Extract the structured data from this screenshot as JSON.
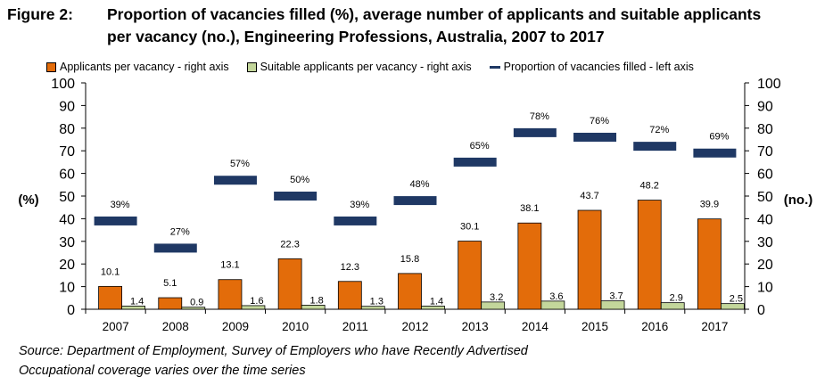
{
  "figure": {
    "label": "Figure 2:",
    "title_line1": "Proportion of vacancies filled (%), average number of applicants and suitable applicants",
    "title_line2": "per vacancy (no.), Engineering Professions, Australia, 2007 to 2017"
  },
  "legend": [
    {
      "name": "Applicants per vacancy - right axis",
      "color": "#e36c0a",
      "kind": "bar"
    },
    {
      "name": "Suitable applicants per vacancy - right axis",
      "color": "#c3d69b",
      "kind": "bar"
    },
    {
      "name": "Proportion of vacancies filled - left axis",
      "color": "#1f3864",
      "kind": "line"
    }
  ],
  "axis_labels": {
    "left": "(%)",
    "right": "(no.)"
  },
  "chart_data": {
    "type": "bar",
    "title": "Proportion of vacancies filled (%), average number of applicants and suitable applicants per vacancy (no.), Engineering Professions, Australia, 2007 to 2017",
    "categories": [
      "2007",
      "2008",
      "2009",
      "2010",
      "2011",
      "2012",
      "2013",
      "2014",
      "2015",
      "2016",
      "2017"
    ],
    "series": [
      {
        "name": "Applicants per vacancy - right axis",
        "axis": "right",
        "color": "#e36c0a",
        "values": [
          10.1,
          5.1,
          13.1,
          22.3,
          12.3,
          15.8,
          30.1,
          38.1,
          43.7,
          48.2,
          39.9
        ],
        "labels": [
          "10.1",
          "5.1",
          "13.1",
          "22.3",
          "12.3",
          "15.8",
          "30.1",
          "38.1",
          "43.7",
          "48.2",
          "39.9"
        ]
      },
      {
        "name": "Suitable applicants per vacancy - right axis",
        "axis": "right",
        "color": "#c3d69b",
        "values": [
          1.4,
          0.9,
          1.6,
          1.8,
          1.3,
          1.4,
          3.2,
          3.6,
          3.7,
          2.9,
          2.5
        ],
        "labels": [
          "1.4",
          "0.9",
          "1.6",
          "1.8",
          "1.3",
          "1.4",
          "3.2",
          "3.6",
          "3.7",
          "2.9",
          "2.5"
        ]
      },
      {
        "name": "Proportion of vacancies filled - left axis",
        "axis": "left",
        "color": "#1f3864",
        "values": [
          39,
          27,
          57,
          50,
          39,
          48,
          65,
          78,
          76,
          72,
          69
        ],
        "labels": [
          "39%",
          "27%",
          "57%",
          "50%",
          "39%",
          "48%",
          "65%",
          "78%",
          "76%",
          "72%",
          "69%"
        ]
      }
    ],
    "ylabel": "(%)",
    "y2label": "(no.)",
    "ylim": [
      0,
      100
    ],
    "y2lim": [
      0,
      100
    ],
    "yticks": [
      "0",
      "10",
      "20",
      "30",
      "40",
      "50",
      "60",
      "70",
      "80",
      "90",
      "100"
    ],
    "grid": false,
    "legend_position": "top"
  },
  "source": {
    "line1": "Source: Department of Employment, Survey of Employers who have Recently Advertised",
    "line2": "Occupational coverage varies over the time series"
  }
}
